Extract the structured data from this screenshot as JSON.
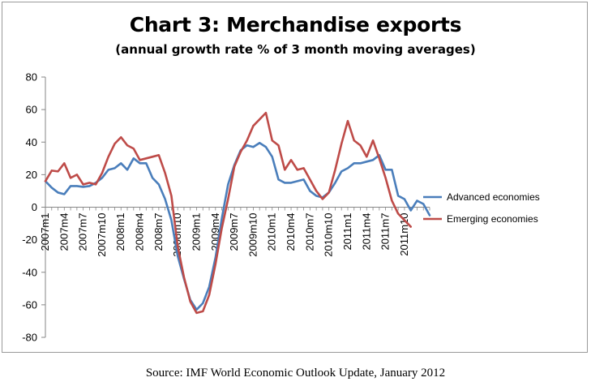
{
  "chart_data": {
    "type": "line",
    "title": "Chart 3: Merchandise exports",
    "subtitle": "(annual growth rate % of 3 month moving averages)",
    "source": "Source: IMF World Economic Outlook Update, January 2012",
    "ylim": [
      -80,
      80
    ],
    "yticks": [
      80,
      60,
      40,
      20,
      0,
      -20,
      -40,
      -60,
      -80
    ],
    "x_tick_labels": [
      "2007m1",
      "2007m4",
      "2007m7",
      "2007m10",
      "2008m1",
      "2008m4",
      "2008m7",
      "2008m10",
      "2009m1",
      "2009m4",
      "2009m7",
      "2009m10",
      "2010m1",
      "2010m4",
      "2010m7",
      "2010m10",
      "2011m1",
      "2011m4",
      "2011m7",
      "2011m10"
    ],
    "legend_position": "right",
    "series": [
      {
        "name": "Advanced economies",
        "color": "#4a7ebb",
        "values": [
          16,
          12,
          9,
          8,
          13,
          13,
          12.5,
          13,
          15,
          18,
          23,
          24,
          27,
          23,
          30,
          27,
          27,
          18,
          14,
          5,
          -8,
          -30,
          -44,
          -57,
          -63,
          -59,
          -49,
          -31,
          -7,
          14,
          26,
          35,
          38,
          37,
          39.5,
          37,
          31,
          17,
          15,
          15,
          16,
          17,
          10,
          7,
          6,
          9,
          15,
          22,
          24,
          27,
          27,
          28,
          29,
          32,
          23,
          23,
          7,
          5,
          -2,
          4,
          2,
          -5
        ]
      },
      {
        "name": "Emerging economies",
        "color": "#be4b48",
        "values": [
          16,
          22.5,
          22,
          27,
          18,
          20,
          14,
          15,
          14,
          21,
          31,
          39,
          43,
          38,
          36,
          29,
          30,
          31,
          32,
          21,
          7,
          -24,
          -43,
          -58,
          -65,
          -64,
          -54,
          -35,
          -13,
          5,
          25,
          34,
          41,
          50,
          54,
          58,
          41,
          38,
          23,
          29,
          23,
          24,
          17,
          10,
          5,
          9,
          23,
          39,
          53,
          41,
          38,
          31,
          41,
          30,
          18,
          4,
          -4,
          -8,
          -12
        ]
      }
    ]
  }
}
